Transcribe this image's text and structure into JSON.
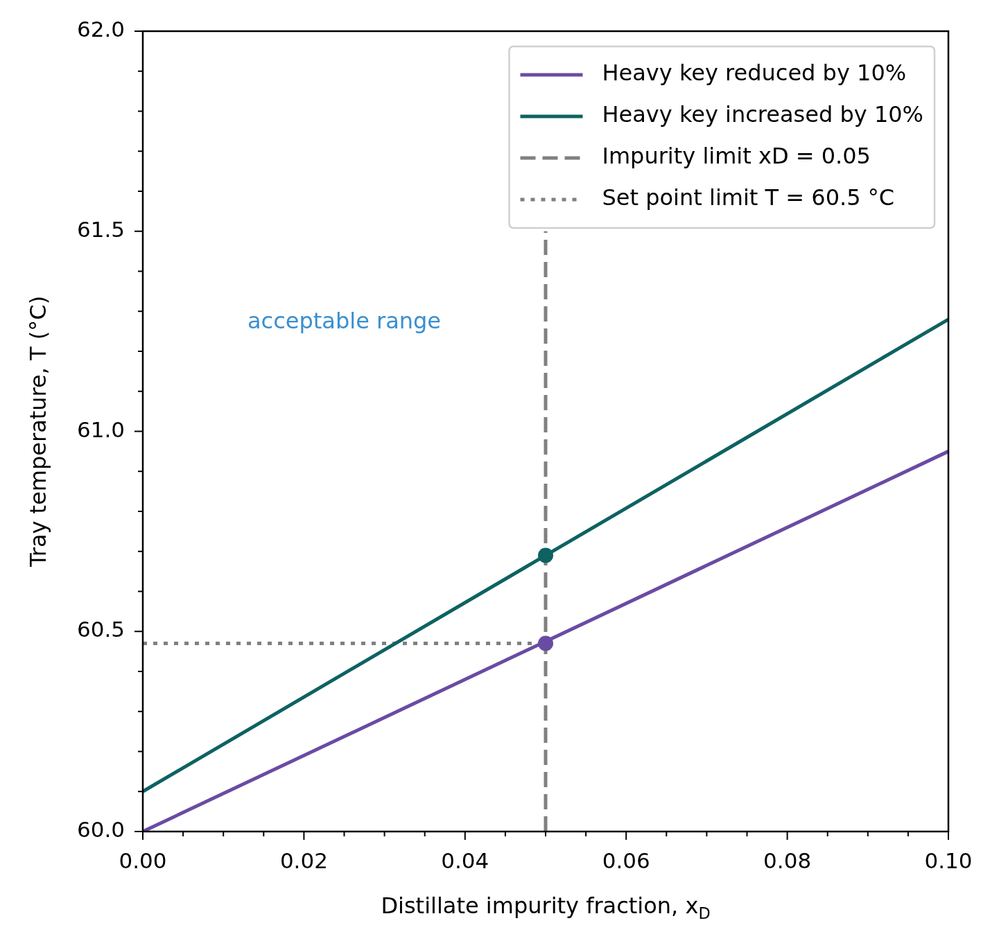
{
  "chart_data": {
    "type": "line",
    "xlabel": "Distillate impurity fraction, x$_{D}$",
    "ylabel": "Tray temperature, T (°C)",
    "legend": "top right",
    "marker": "none",
    "line_style": "solid",
    "annotations": [
      "acceptable range"
    ],
    "xlim": [
      0,
      0.1
    ],
    "ylim": [
      60,
      62
    ],
    "xticks": [
      {
        "value": 0,
        "label": "0.00"
      },
      {
        "value": 0.005,
        "label": null
      },
      {
        "value": 0.01,
        "label": null
      },
      {
        "value": 0.015,
        "label": null
      },
      {
        "value": 0.02,
        "label": "0.02"
      },
      {
        "value": 0.025,
        "label": null
      },
      {
        "value": 0.03,
        "label": null
      },
      {
        "value": 0.035,
        "label": null
      },
      {
        "value": 0.04,
        "label": "0.04"
      },
      {
        "value": 0.045,
        "label": null
      },
      {
        "value": 0.05,
        "label": null
      },
      {
        "value": 0.055,
        "label": null
      },
      {
        "value": 0.06,
        "label": "0.06"
      },
      {
        "value": 0.065,
        "label": null
      },
      {
        "value": 0.07,
        "label": null
      },
      {
        "value": 0.075,
        "label": null
      },
      {
        "value": 0.08,
        "label": "0.08"
      },
      {
        "value": 0.085,
        "label": null
      },
      {
        "value": 0.09,
        "label": null
      },
      {
        "value": 0.095,
        "label": null
      },
      {
        "value": 0.1,
        "label": "0.10"
      }
    ],
    "yticks": [
      {
        "value": 60,
        "label": "60.0"
      },
      {
        "value": 60.1,
        "label": null
      },
      {
        "value": 60.2,
        "label": null
      },
      {
        "value": 60.3,
        "label": null
      },
      {
        "value": 60.4,
        "label": null
      },
      {
        "value": 60.5,
        "label": "60.5"
      },
      {
        "value": 60.6,
        "label": null
      },
      {
        "value": 60.7,
        "label": null
      },
      {
        "value": 60.8,
        "label": null
      },
      {
        "value": 60.9,
        "label": null
      },
      {
        "value": 61,
        "label": "61.0"
      },
      {
        "value": 61.1,
        "label": null
      },
      {
        "value": 61.2,
        "label": null
      },
      {
        "value": 61.3,
        "label": null
      },
      {
        "value": 61.4,
        "label": null
      },
      {
        "value": 61.5,
        "label": "61.5"
      },
      {
        "value": 61.6,
        "label": null
      },
      {
        "value": 61.7,
        "label": null
      },
      {
        "value": 61.8,
        "label": null
      },
      {
        "value": 61.9,
        "label": null
      },
      {
        "value": 62,
        "label": "62.0"
      }
    ],
    "series": [
      {
        "name": "Heavy key reduced by 10%",
        "color": "#6a4ba3",
        "x": [
          0,
          0.1
        ],
        "values": [
          60.0,
          60.95
        ]
      },
      {
        "name": "Heavy key increased by 10%",
        "color": "#0e6262",
        "x": [
          0,
          0.1
        ],
        "values": [
          60.1,
          61.28
        ]
      },
      {
        "name": "Impurity limit xD = 0.05",
        "color": "#808080",
        "line_style": "dashed",
        "x": [
          0.05,
          0.05
        ],
        "values": [
          60,
          61.5
        ]
      },
      {
        "name": "Set point limit T = 60.5 °C",
        "color": "#808080",
        "line_style": "dotted",
        "x": [
          0,
          0.05
        ],
        "values": [
          60.47,
          60.47
        ]
      },
      {
        "type": "scatter",
        "marker": "circle",
        "color": "#6a4ba3",
        "x": [
          0.05
        ],
        "values": [
          60.47
        ]
      },
      {
        "type": "scatter",
        "marker": "circle",
        "color": "#0e6262",
        "x": [
          0.05
        ],
        "values": [
          60.69
        ]
      }
    ]
  }
}
